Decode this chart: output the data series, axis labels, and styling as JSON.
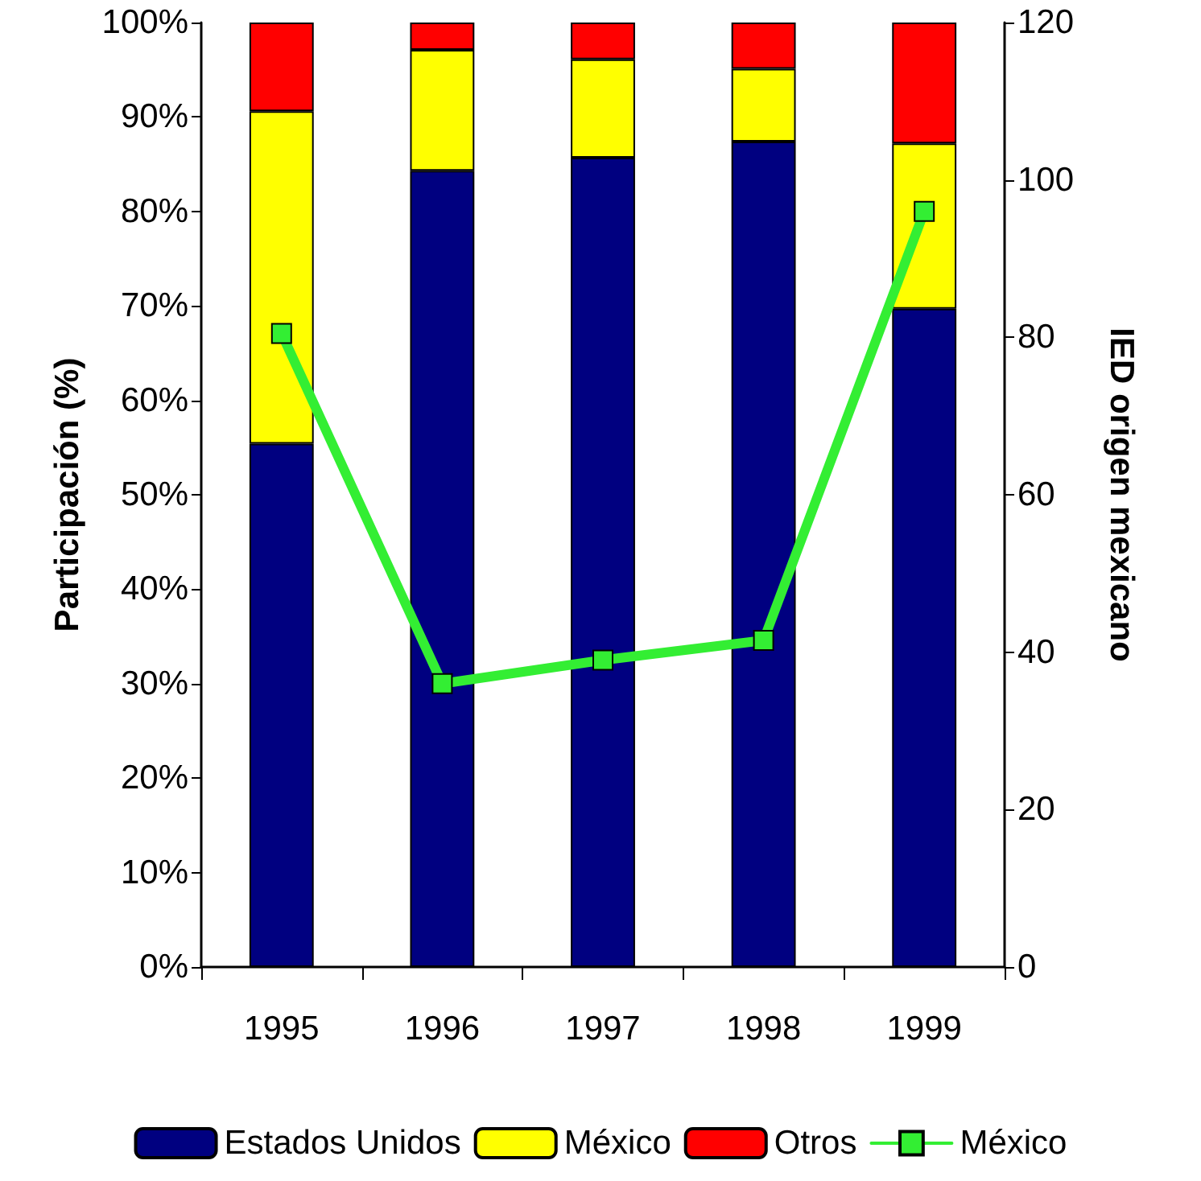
{
  "chart_data": {
    "type": "bar",
    "stacked": true,
    "categories": [
      "1995",
      "1996",
      "1997",
      "1998",
      "1999"
    ],
    "series": [
      {
        "name": "Estados Unidos",
        "color": "#000080",
        "values": [
          55.4,
          84.3,
          85.7,
          87.4,
          69.7
        ]
      },
      {
        "name": "México",
        "color": "#ffff00",
        "values": [
          35.2,
          12.8,
          10.4,
          7.7,
          17.5
        ]
      },
      {
        "name": "Otros",
        "color": "#ff0000",
        "values": [
          9.4,
          2.9,
          3.9,
          4.9,
          12.8
        ]
      },
      {
        "name": "México",
        "type": "line",
        "axis": "y2",
        "color": "#33ee33",
        "marker": "square",
        "values": [
          80.5,
          36,
          39,
          41.5,
          96
        ]
      }
    ],
    "ylabel": "Participación (%)",
    "y2label": "IED origen mexicano",
    "ylim": [
      0,
      100
    ],
    "yticks": [
      {
        "value": 0,
        "label": "0%"
      },
      {
        "value": 10,
        "label": "10%"
      },
      {
        "value": 20,
        "label": "20%"
      },
      {
        "value": 30,
        "label": "30%"
      },
      {
        "value": 40,
        "label": "40%"
      },
      {
        "value": 50,
        "label": "50%"
      },
      {
        "value": 60,
        "label": "60%"
      },
      {
        "value": 70,
        "label": "70%"
      },
      {
        "value": 80,
        "label": "80%"
      },
      {
        "value": 90,
        "label": "90%"
      },
      {
        "value": 100,
        "label": "100%"
      }
    ],
    "y2lim": [
      0,
      120
    ],
    "y2ticks": [
      0,
      20,
      40,
      60,
      80,
      100,
      120
    ],
    "legend": "bottom",
    "grid": false
  }
}
